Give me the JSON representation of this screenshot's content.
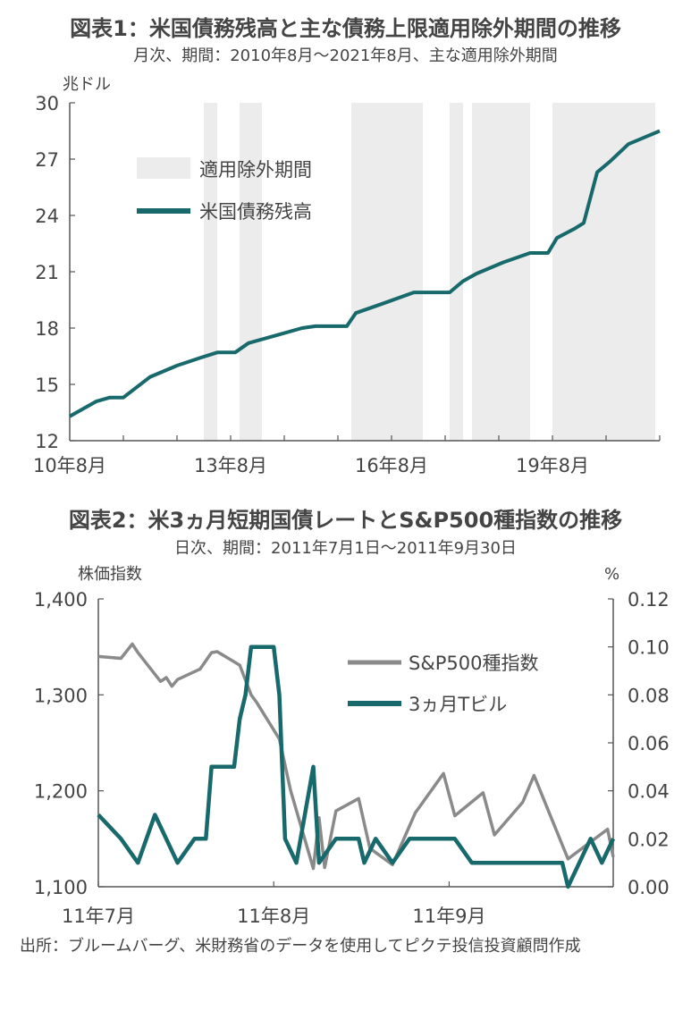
{
  "chart1": {
    "title": "図表1：米国債務残高と主な債務上限適用除外期間の推移",
    "subtitle": "月次、期間：2010年8月～2021年8月、主な適用除外期間",
    "unit": "兆ドル",
    "legend": {
      "band": "適用除外期間",
      "line": "米国債務残高"
    },
    "x_ticks": [
      "10年8月",
      "13年8月",
      "16年8月",
      "19年8月"
    ],
    "y_ticks": [
      "12",
      "15",
      "18",
      "21",
      "24",
      "27",
      "30"
    ]
  },
  "chart2": {
    "title": "図表2：米3ヵ月短期国債レートとS&P500種指数の推移",
    "subtitle": "日次、期間：2011年7月1日～2011年9月30日",
    "left_unit": "株価指数",
    "right_unit": "%",
    "legend": {
      "sp": "S&P500種指数",
      "tbill": "3ヵ月Tビル"
    },
    "x_ticks": [
      "11年7月",
      "11年8月",
      "11年9月"
    ],
    "y_left_ticks": [
      "1,100",
      "1,200",
      "1,300",
      "1,400"
    ],
    "y_right_ticks": [
      "0.00",
      "0.02",
      "0.04",
      "0.06",
      "0.08",
      "0.10",
      "0.12"
    ]
  },
  "source": "出所：ブルームバーグ、米財務省のデータを使用してピクテ投信投資顧問作成",
  "colors": {
    "teal": "#17696b",
    "gray": "#8a8a8a",
    "band": "#ececec",
    "axis": "#555555"
  },
  "chart_data": [
    {
      "type": "line",
      "title": "図表1：米国債務残高と主な債務上限適用除外期間の推移",
      "ylabel": "兆ドル",
      "ylim": [
        12,
        30
      ],
      "xlim": [
        "2010-08",
        "2021-08"
      ],
      "grid": false,
      "legend_position": "upper-left",
      "exemption_periods": [
        [
          "2013-02",
          "2013-05"
        ],
        [
          "2013-10",
          "2014-03"
        ],
        [
          "2015-11",
          "2017-03"
        ],
        [
          "2017-09",
          "2017-12"
        ],
        [
          "2018-02",
          "2019-03"
        ],
        [
          "2019-08",
          "2021-07"
        ]
      ],
      "series": [
        {
          "name": "米国債務残高",
          "points": [
            [
              "2010-08",
              13.3
            ],
            [
              "2011-02",
              14.1
            ],
            [
              "2011-05",
              14.3
            ],
            [
              "2011-08",
              14.3
            ],
            [
              "2012-02",
              15.4
            ],
            [
              "2012-08",
              16.0
            ],
            [
              "2013-01",
              16.4
            ],
            [
              "2013-05",
              16.7
            ],
            [
              "2013-09",
              16.7
            ],
            [
              "2013-12",
              17.2
            ],
            [
              "2014-06",
              17.6
            ],
            [
              "2014-12",
              18.0
            ],
            [
              "2015-03",
              18.1
            ],
            [
              "2015-10",
              18.1
            ],
            [
              "2015-12",
              18.8
            ],
            [
              "2016-06",
              19.3
            ],
            [
              "2017-01",
              19.9
            ],
            [
              "2017-09",
              19.9
            ],
            [
              "2017-12",
              20.5
            ],
            [
              "2018-03",
              20.9
            ],
            [
              "2018-09",
              21.5
            ],
            [
              "2019-03",
              22.0
            ],
            [
              "2019-07",
              22.0
            ],
            [
              "2019-09",
              22.8
            ],
            [
              "2020-01",
              23.3
            ],
            [
              "2020-03",
              23.6
            ],
            [
              "2020-06",
              26.3
            ],
            [
              "2020-09",
              26.9
            ],
            [
              "2021-01",
              27.8
            ],
            [
              "2021-05",
              28.2
            ],
            [
              "2021-08",
              28.5
            ]
          ]
        }
      ]
    },
    {
      "type": "line",
      "title": "図表2：米3ヵ月短期国債レートとS&P500種指数の推移",
      "xlim": [
        "2011-07-01",
        "2011-09-30"
      ],
      "y_left": {
        "label": "株価指数",
        "lim": [
          1100,
          1400
        ]
      },
      "y_right": {
        "label": "%",
        "lim": [
          0,
          0.12
        ]
      },
      "grid": false,
      "legend_position": "upper-right",
      "series": [
        {
          "name": "S&P500種指数",
          "axis": "left",
          "points": [
            [
              "2011-07-01",
              1340
            ],
            [
              "2011-07-05",
              1338
            ],
            [
              "2011-07-07",
              1353
            ],
            [
              "2011-07-08",
              1344
            ],
            [
              "2011-07-12",
              1314
            ],
            [
              "2011-07-13",
              1318
            ],
            [
              "2011-07-14",
              1309
            ],
            [
              "2011-07-15",
              1316
            ],
            [
              "2011-07-19",
              1327
            ],
            [
              "2011-07-21",
              1344
            ],
            [
              "2011-07-22",
              1345
            ],
            [
              "2011-07-26",
              1331
            ],
            [
              "2011-07-28",
              1300
            ],
            [
              "2011-07-29",
              1292
            ],
            [
              "2011-08-02",
              1254
            ],
            [
              "2011-08-04",
              1200
            ],
            [
              "2011-08-08",
              1119
            ],
            [
              "2011-08-09",
              1172
            ],
            [
              "2011-08-10",
              1120
            ],
            [
              "2011-08-12",
              1179
            ],
            [
              "2011-08-16",
              1192
            ],
            [
              "2011-08-18",
              1140
            ],
            [
              "2011-08-22",
              1123
            ],
            [
              "2011-08-26",
              1177
            ],
            [
              "2011-08-31",
              1218
            ],
            [
              "2011-09-02",
              1174
            ],
            [
              "2011-09-07",
              1198
            ],
            [
              "2011-09-09",
              1154
            ],
            [
              "2011-09-14",
              1188
            ],
            [
              "2011-09-16",
              1216
            ],
            [
              "2011-09-22",
              1129
            ],
            [
              "2011-09-29",
              1160
            ],
            [
              "2011-09-30",
              1131
            ]
          ]
        },
        {
          "name": "3ヵ月Tビル",
          "axis": "right",
          "points": [
            [
              "2011-07-01",
              0.03
            ],
            [
              "2011-07-05",
              0.02
            ],
            [
              "2011-07-08",
              0.01
            ],
            [
              "2011-07-11",
              0.03
            ],
            [
              "2011-07-15",
              0.01
            ],
            [
              "2011-07-18",
              0.02
            ],
            [
              "2011-07-20",
              0.02
            ],
            [
              "2011-07-21",
              0.05
            ],
            [
              "2011-07-25",
              0.05
            ],
            [
              "2011-07-26",
              0.07
            ],
            [
              "2011-07-27",
              0.08
            ],
            [
              "2011-07-28",
              0.1
            ],
            [
              "2011-07-29",
              0.1
            ],
            [
              "2011-08-01",
              0.1
            ],
            [
              "2011-08-02",
              0.08
            ],
            [
              "2011-08-03",
              0.02
            ],
            [
              "2011-08-05",
              0.01
            ],
            [
              "2011-08-08",
              0.05
            ],
            [
              "2011-08-09",
              0.01
            ],
            [
              "2011-08-12",
              0.02
            ],
            [
              "2011-08-16",
              0.02
            ],
            [
              "2011-08-17",
              0.01
            ],
            [
              "2011-08-19",
              0.02
            ],
            [
              "2011-08-22",
              0.01
            ],
            [
              "2011-08-25",
              0.02
            ],
            [
              "2011-09-02",
              0.02
            ],
            [
              "2011-09-05",
              0.01
            ],
            [
              "2011-09-21",
              0.01
            ],
            [
              "2011-09-22",
              0.0
            ],
            [
              "2011-09-26",
              0.02
            ],
            [
              "2011-09-28",
              0.01
            ],
            [
              "2011-09-30",
              0.02
            ]
          ]
        }
      ]
    }
  ]
}
